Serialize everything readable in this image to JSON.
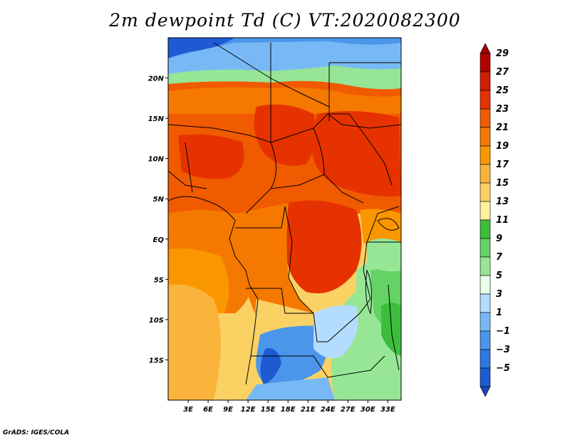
{
  "title": "2m dewpoint Td (C) VT:2020082300",
  "credit": "GrADS: IGES/COLA",
  "map": {
    "lat_labels": [
      {
        "lat": 20,
        "label": "20N"
      },
      {
        "lat": 15,
        "label": "15N"
      },
      {
        "lat": 10,
        "label": "10N"
      },
      {
        "lat": 5,
        "label": "5N"
      },
      {
        "lat": 0,
        "label": "EQ"
      },
      {
        "lat": -5,
        "label": "5S"
      },
      {
        "lat": -10,
        "label": "10S"
      },
      {
        "lat": -15,
        "label": "15S"
      }
    ],
    "lon_labels": [
      {
        "lon": 3,
        "label": "3E"
      },
      {
        "lon": 6,
        "label": "6E"
      },
      {
        "lon": 9,
        "label": "9E"
      },
      {
        "lon": 12,
        "label": "12E"
      },
      {
        "lon": 15,
        "label": "15E"
      },
      {
        "lon": 18,
        "label": "18E"
      },
      {
        "lon": 21,
        "label": "21E"
      },
      {
        "lon": 24,
        "label": "24E"
      },
      {
        "lon": 27,
        "label": "27E"
      },
      {
        "lon": 30,
        "label": "30E"
      },
      {
        "lon": 33,
        "label": "33E"
      }
    ],
    "extent": {
      "lon_min": 0,
      "lon_max": 35,
      "lat_min": -20,
      "lat_max": 25
    }
  },
  "colorbar": {
    "levels": [
      {
        "label": "29",
        "color": "#b40000"
      },
      {
        "label": "27",
        "color": "#d21e00"
      },
      {
        "label": "25",
        "color": "#e63200"
      },
      {
        "label": "23",
        "color": "#f05a00"
      },
      {
        "label": "21",
        "color": "#f57800"
      },
      {
        "label": "19",
        "color": "#fa9600"
      },
      {
        "label": "17",
        "color": "#fab43c"
      },
      {
        "label": "15",
        "color": "#fad264"
      },
      {
        "label": "13",
        "color": "#fff0a0"
      },
      {
        "label": "11",
        "color": "#3cbe3c"
      },
      {
        "label": "9",
        "color": "#64d264"
      },
      {
        "label": "7",
        "color": "#96e696"
      },
      {
        "label": "5",
        "color": "#e6ffe6"
      },
      {
        "label": "3",
        "color": "#b4dcff"
      },
      {
        "label": "1",
        "color": "#78b9f5"
      },
      {
        "label": "−1",
        "color": "#4b96eb"
      },
      {
        "label": "−3",
        "color": "#2d78e1"
      },
      {
        "label": "−5",
        "color": "#1e5ad2"
      }
    ],
    "top_color": "#a00000",
    "bottom_color": "#1e46be"
  }
}
